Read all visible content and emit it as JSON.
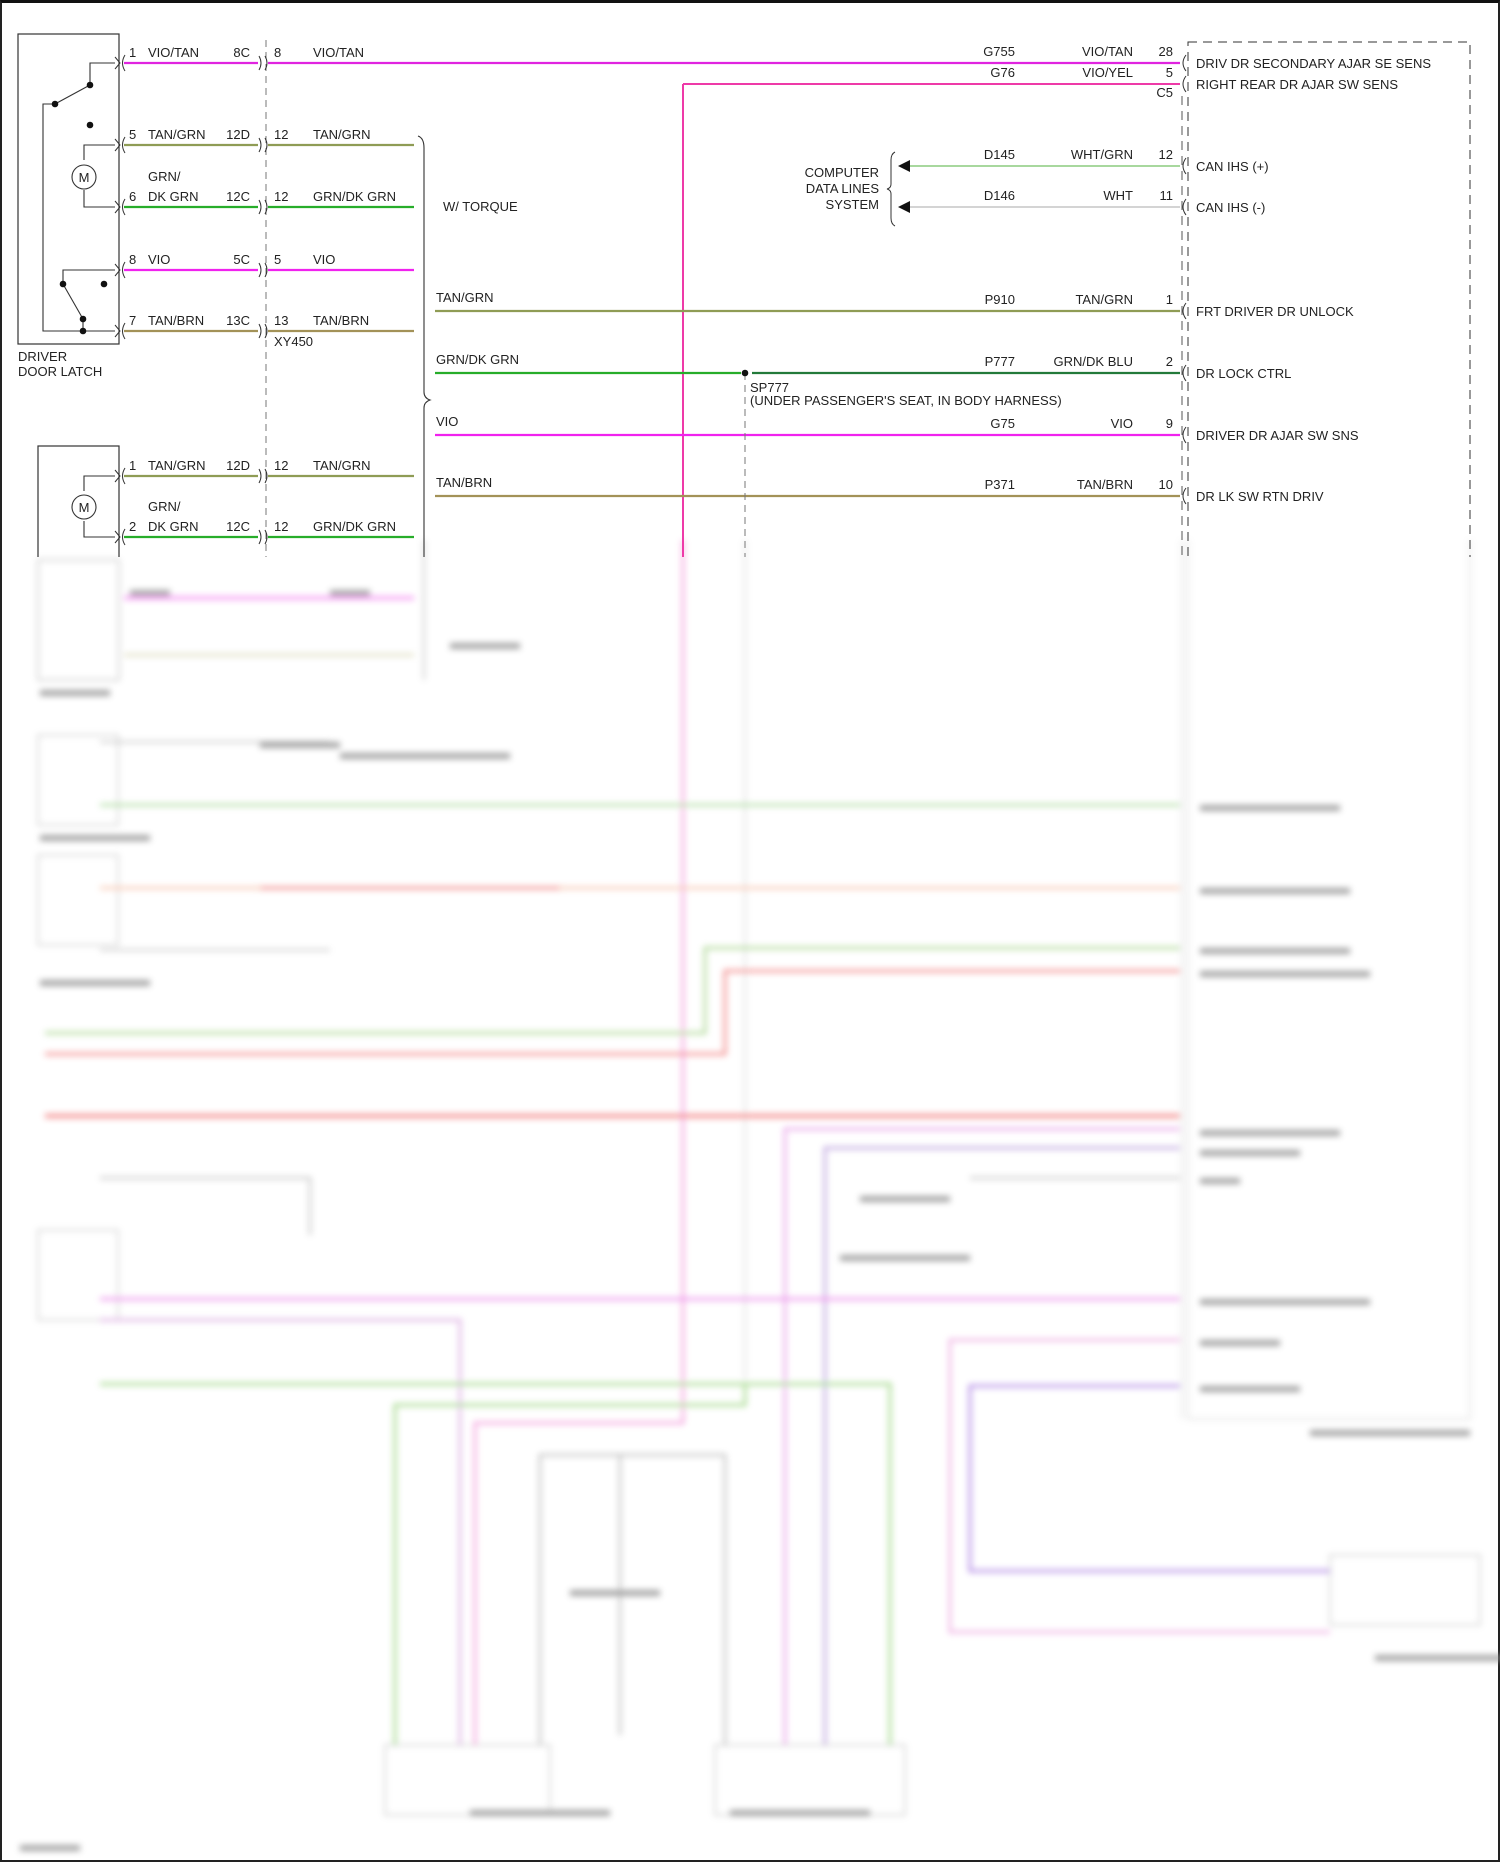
{
  "driver_latch": {
    "name_lines": [
      "DRIVER",
      "DOOR LATCH"
    ],
    "wires": [
      {
        "pin": "1",
        "color": "VIO/TAN",
        "conn": "8C",
        "pin2": "8",
        "color2": "VIO/TAN",
        "hex": "#e024e0"
      },
      {
        "pin": "5",
        "color": "TAN/GRN",
        "conn": "12D",
        "pin2": "12",
        "color2": "TAN/GRN",
        "hex": "#8f9c55"
      },
      {
        "pin": "6",
        "color_top": "GRN/",
        "color": "DK GRN",
        "conn": "12C",
        "pin2": "12",
        "color2": "GRN/DK GRN",
        "hex": "#27ad2a"
      },
      {
        "pin": "8",
        "color": "VIO",
        "conn": "5C",
        "pin2": "5",
        "color2": "VIO",
        "hex": "#f022ee"
      },
      {
        "pin": "7",
        "color": "TAN/BRN",
        "conn": "13C",
        "pin2": "13",
        "color2": "TAN/BRN",
        "hex": "#a39258"
      }
    ]
  },
  "inline_connector": "XY450",
  "torque_label": "W/ TORQUE",
  "second_latch": {
    "wires": [
      {
        "pin": "1",
        "color": "TAN/GRN",
        "conn": "12D",
        "pin2": "12",
        "color2": "TAN/GRN",
        "hex": "#8f9c55"
      },
      {
        "pin": "2",
        "color_top": "GRN/",
        "color": "DK GRN",
        "conn": "12C",
        "pin2": "12",
        "color2": "GRN/DK GRN",
        "hex": "#27ad2a"
      }
    ]
  },
  "harness_wires": [
    {
      "label": "TAN/GRN",
      "hex": "#8f9c55"
    },
    {
      "label": "GRN/DK GRN",
      "hex": "#27ad2a"
    },
    {
      "label": "VIO",
      "hex": "#f022ee"
    },
    {
      "label": "TAN/BRN",
      "hex": "#a39258"
    }
  ],
  "module": {
    "connector": "C5",
    "pins": [
      {
        "circuit": "G755",
        "color": "VIO/TAN",
        "pin": "28",
        "label": "DRIV DR SECONDARY AJAR SE SENS",
        "hex": "#e024e0"
      },
      {
        "circuit": "G76",
        "color": "VIO/YEL",
        "pin": "5",
        "label": "RIGHT REAR DR AJAR SW SENS",
        "hex": "#ee3aa8"
      },
      {
        "circuit": "D145",
        "color": "WHT/GRN",
        "pin": "12",
        "label": "CAN IHS (+)",
        "hex": "#a8d89e"
      },
      {
        "circuit": "D146",
        "color": "WHT",
        "pin": "11",
        "label": "CAN IHS (-)",
        "hex": "#d4d4d4"
      },
      {
        "circuit": "P910",
        "color": "TAN/GRN",
        "pin": "1",
        "label": "FRT DRIVER DR UNLOCK",
        "hex": "#8f9c55"
      },
      {
        "circuit": "P777",
        "color": "GRN/DK BLU",
        "pin": "2",
        "label": "DR LOCK CTRL",
        "hex": "#237a3a"
      },
      {
        "circuit": "G75",
        "color": "VIO",
        "pin": "9",
        "label": "DRIVER DR AJAR SW SNS",
        "hex": "#f022ee"
      },
      {
        "circuit": "P371",
        "color": "TAN/BRN",
        "pin": "10",
        "label": "DR LK SW RTN DRIV",
        "hex": "#a39258"
      }
    ]
  },
  "computer_data_lines": [
    "COMPUTER",
    "DATA LINES",
    "SYSTEM"
  ],
  "splice": {
    "id": "SP777",
    "location": "(UNDER PASSENGER'S SEAT, IN BODY HARNESS)"
  }
}
